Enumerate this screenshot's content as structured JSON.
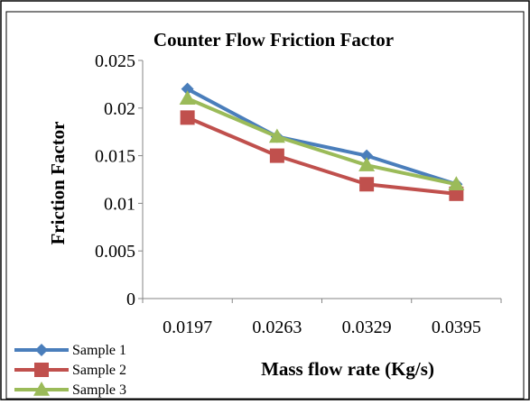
{
  "chart_data": {
    "type": "line",
    "title": "Counter Flow Friction Factor",
    "xlabel": "Mass flow rate (Kg/s)",
    "ylabel": "Friction Factor",
    "categories": [
      "0.0197",
      "0.0263",
      "0.0329",
      "0.0395"
    ],
    "ylim": [
      0,
      0.025
    ],
    "yticks": [
      "0",
      "0.005",
      "0.01",
      "0.015",
      "0.02",
      "0.025"
    ],
    "grid": false,
    "legend_position": "bottom-left",
    "series": [
      {
        "name": "Sample 1",
        "color": "#4a7ebb",
        "marker": "diamond",
        "values": [
          0.022,
          0.017,
          0.015,
          0.012
        ]
      },
      {
        "name": "Sample 2",
        "color": "#c0504d",
        "marker": "square",
        "values": [
          0.019,
          0.015,
          0.012,
          0.011
        ]
      },
      {
        "name": "Sample 3",
        "color": "#9bbb59",
        "marker": "triangle",
        "values": [
          0.021,
          0.017,
          0.014,
          0.012
        ]
      }
    ]
  }
}
